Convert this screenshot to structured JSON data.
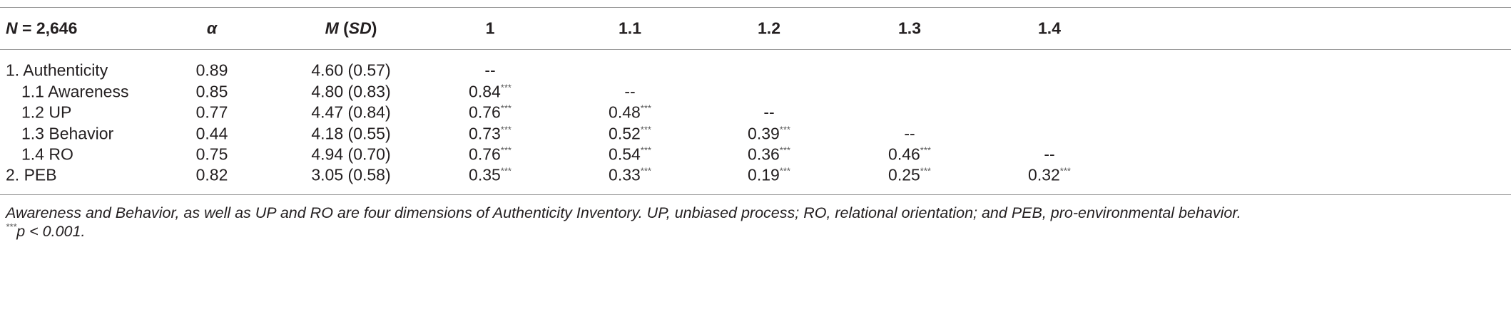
{
  "header": [
    [
      {
        "t": "N",
        "italic": true
      },
      {
        "t": " = 2,646"
      }
    ],
    [
      {
        "t": "α",
        "italic": true
      }
    ],
    [
      {
        "t": "M",
        "italic": true
      },
      {
        "t": " ("
      },
      {
        "t": "SD",
        "italic": true
      },
      {
        "t": ")"
      }
    ],
    [
      {
        "t": "1"
      }
    ],
    [
      {
        "t": "1.1"
      }
    ],
    [
      {
        "t": "1.2"
      }
    ],
    [
      {
        "t": "1.3"
      }
    ],
    [
      {
        "t": "1.4"
      }
    ]
  ],
  "rows": [
    {
      "label": "1. Authenticity",
      "indent": false,
      "cells": [
        {
          "text": "0.89"
        },
        {
          "text": "4.60 (0.57)"
        },
        {
          "text": "--"
        },
        null,
        null,
        null,
        null
      ]
    },
    {
      "label": "1.1 Awareness",
      "indent": true,
      "cells": [
        {
          "text": "0.85"
        },
        {
          "text": "4.80 (0.83)"
        },
        {
          "text": "0.84",
          "sup": "***"
        },
        {
          "text": "--"
        },
        null,
        null,
        null
      ]
    },
    {
      "label": "1.2 UP",
      "indent": true,
      "cells": [
        {
          "text": "0.77"
        },
        {
          "text": "4.47 (0.84)"
        },
        {
          "text": "0.76",
          "sup": "***"
        },
        {
          "text": "0.48",
          "sup": "***"
        },
        {
          "text": "--"
        },
        null,
        null
      ]
    },
    {
      "label": "1.3 Behavior",
      "indent": true,
      "cells": [
        {
          "text": "0.44"
        },
        {
          "text": "4.18 (0.55)"
        },
        {
          "text": "0.73",
          "sup": "***"
        },
        {
          "text": "0.52",
          "sup": "***"
        },
        {
          "text": "0.39",
          "sup": "***"
        },
        {
          "text": "--"
        },
        null
      ]
    },
    {
      "label": "1.4 RO",
      "indent": true,
      "cells": [
        {
          "text": "0.75"
        },
        {
          "text": "4.94 (0.70)"
        },
        {
          "text": "0.76",
          "sup": "***"
        },
        {
          "text": "0.54",
          "sup": "***"
        },
        {
          "text": "0.36",
          "sup": "***"
        },
        {
          "text": "0.46",
          "sup": "***"
        },
        {
          "text": "--"
        }
      ]
    },
    {
      "label": "2. PEB",
      "indent": false,
      "cells": [
        {
          "text": "0.82"
        },
        {
          "text": "3.05 (0.58)"
        },
        {
          "text": "0.35",
          "sup": "***"
        },
        {
          "text": "0.33",
          "sup": "***"
        },
        {
          "text": "0.19",
          "sup": "***"
        },
        {
          "text": "0.25",
          "sup": "***"
        },
        {
          "text": "0.32",
          "sup": "***"
        }
      ]
    }
  ],
  "footnote": [
    [
      {
        "t": "Awareness and Behavior, as well as UP and RO are four dimensions of Authenticity Inventory. UP, unbiased process; RO, relational orientation; and PEB, pro-environmental behavior."
      }
    ],
    [
      {
        "t": "***",
        "sup": true
      },
      {
        "t": "p < 0.001."
      }
    ]
  ]
}
